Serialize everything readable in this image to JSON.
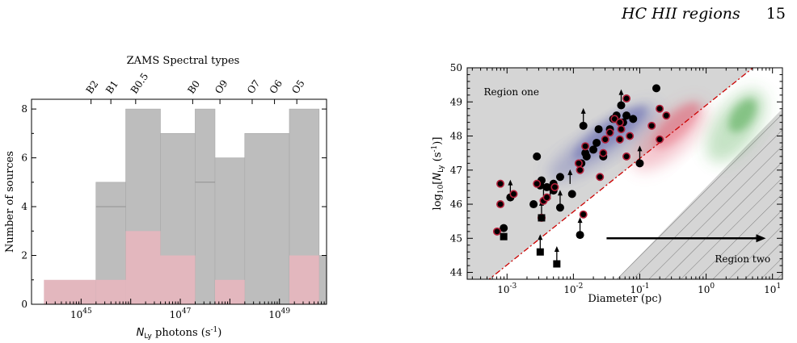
{
  "header": {
    "running_title": "HC HII regions",
    "page_number": "15"
  },
  "chart_data": [
    {
      "type": "bar",
      "name": "histogram",
      "top_axis_title": "ZAMS Spectral types",
      "top_ticks": [
        "B2",
        "B1",
        "B0.5",
        "B0",
        "O9",
        "O7",
        "O6",
        "O5"
      ],
      "top_tick_log_positions": [
        45.2,
        45.6,
        46.1,
        47.25,
        47.8,
        48.45,
        48.9,
        49.35
      ],
      "ylabel": "Number of sources",
      "xlabel": "N_Ly photons (s^-1)",
      "xlim_log": [
        44.0,
        49.95
      ],
      "ylim": [
        0,
        8.4
      ],
      "x_tick_labels": [
        "10^45",
        "10^47",
        "10^49"
      ],
      "x_tick_log_values": [
        45,
        47,
        49
      ],
      "y_tick_labels": [
        "0",
        "2",
        "4",
        "6",
        "8"
      ],
      "y_tick_values": [
        0,
        2,
        4,
        6,
        8
      ],
      "series": [
        {
          "bins": [
            [
              44.25,
              45.3,
              0
            ],
            [
              45.3,
              45.9,
              5
            ],
            [
              45.9,
              46.6,
              8
            ],
            [
              46.6,
              47.3,
              7
            ],
            [
              47.3,
              47.7,
              8
            ],
            [
              47.7,
              48.3,
              6
            ],
            [
              48.3,
              49.2,
              7
            ],
            [
              49.2,
              49.8,
              8
            ],
            [
              49.8,
              50.0,
              2
            ]
          ],
          "color": "#bdbdbd"
        },
        {
          "bins": [
            [
              44.25,
              45.3,
              1
            ],
            [
              45.3,
              45.9,
              1
            ],
            [
              45.9,
              46.6,
              3
            ],
            [
              46.6,
              47.3,
              2
            ],
            [
              47.3,
              47.7,
              0
            ],
            [
              47.7,
              48.3,
              1
            ],
            [
              48.3,
              49.2,
              0
            ],
            [
              49.2,
              49.8,
              2
            ],
            [
              49.8,
              50.0,
              0
            ]
          ],
          "color": "#e3b7be"
        }
      ]
    },
    {
      "type": "scatter",
      "name": "size-luminosity",
      "xlabel": "Diameter (pc)",
      "ylabel": "log10[N_Ly (s^-1)]",
      "xlim_log": [
        -3.6,
        1.15
      ],
      "ylim": [
        43.8,
        50.0
      ],
      "x_tick_labels": [
        "10^-3",
        "10^-2",
        "10^-1",
        "10^0",
        "10^1"
      ],
      "x_tick_log_values": [
        -3,
        -2,
        -1,
        0,
        1
      ],
      "y_tick_labels": [
        "44",
        "45",
        "46",
        "47",
        "48",
        "49",
        "50"
      ],
      "y_tick_values": [
        44,
        45,
        46,
        47,
        48,
        49,
        50
      ],
      "annotations": [
        "Region one",
        "Region two"
      ],
      "points_black": [
        [
          -2.6,
          46.0
        ],
        [
          -2.55,
          47.4
        ],
        [
          -2.48,
          46.7
        ],
        [
          -2.4,
          46.5
        ],
        [
          -2.3,
          46.6
        ],
        [
          -2.2,
          46.8
        ],
        [
          -2.2,
          45.9
        ],
        [
          -2.02,
          46.3
        ],
        [
          -1.88,
          47.2
        ],
        [
          -1.85,
          48.3
        ],
        [
          -1.82,
          47.5
        ],
        [
          -1.8,
          47.4
        ],
        [
          -1.7,
          47.6
        ],
        [
          -1.65,
          47.8
        ],
        [
          -1.62,
          48.2
        ],
        [
          -1.55,
          47.4
        ],
        [
          -1.45,
          48.2
        ],
        [
          -1.4,
          48.5
        ],
        [
          -1.35,
          48.6
        ],
        [
          -1.28,
          48.9
        ],
        [
          -1.25,
          48.4
        ],
        [
          -1.2,
          48.6
        ],
        [
          -1.1,
          48.5
        ],
        [
          -1.0,
          47.2
        ],
        [
          -0.75,
          49.4
        ],
        [
          -2.95,
          46.2
        ],
        [
          -3.05,
          45.3
        ],
        [
          -1.9,
          45.1
        ],
        [
          -2.3,
          46.4
        ],
        [
          -2.5,
          46.55
        ]
      ],
      "points_red": [
        [
          -3.15,
          45.2
        ],
        [
          -3.1,
          46.6
        ],
        [
          -3.1,
          46.0
        ],
        [
          -2.9,
          46.3
        ],
        [
          -2.55,
          46.6
        ],
        [
          -2.48,
          45.6
        ],
        [
          -2.45,
          46.1
        ],
        [
          -2.4,
          46.2
        ],
        [
          -2.28,
          46.5
        ],
        [
          -1.92,
          47.2
        ],
        [
          -1.9,
          47.0
        ],
        [
          -1.82,
          47.7
        ],
        [
          -1.6,
          46.8
        ],
        [
          -1.55,
          47.5
        ],
        [
          -1.52,
          47.9
        ],
        [
          -1.45,
          48.1
        ],
        [
          -1.38,
          48.5
        ],
        [
          -1.3,
          47.9
        ],
        [
          -1.2,
          47.4
        ],
        [
          -1.15,
          48.0
        ],
        [
          -1.2,
          49.1
        ],
        [
          -0.82,
          48.3
        ],
        [
          -0.7,
          47.9
        ],
        [
          -0.7,
          48.8
        ],
        [
          -0.6,
          48.6
        ],
        [
          -1.85,
          45.7
        ],
        [
          -1.3,
          48.4
        ],
        [
          -1.28,
          48.2
        ]
      ],
      "squares": [
        [
          -3.05,
          45.05
        ],
        [
          -2.5,
          44.6
        ],
        [
          -2.25,
          44.25
        ],
        [
          -2.48,
          45.6
        ]
      ],
      "upward_arrow_points": [
        [
          -2.95,
          46.2
        ],
        [
          -2.5,
          44.6
        ],
        [
          -2.25,
          44.25
        ],
        [
          -2.45,
          46.1
        ],
        [
          -2.2,
          45.9
        ],
        [
          -1.9,
          45.1
        ],
        [
          -1.85,
          48.3
        ],
        [
          -1.0,
          47.2
        ],
        [
          -2.48,
          45.6
        ],
        [
          -2.05,
          46.5
        ],
        [
          -2.35,
          46.05
        ],
        [
          -1.28,
          48.85
        ]
      ],
      "arrow": {
        "from": [
          -1.5,
          45.0
        ],
        "to": [
          0.9,
          45.0
        ]
      },
      "colors": {
        "black_marker": "#000000",
        "red_edge": "#b3203a",
        "dashdot_line": "#cc0000",
        "blue_kde": "#5a5fb0",
        "red_kde": "#e26478",
        "green_kde": "#4ea84e",
        "shade": "#d5d5d5"
      }
    }
  ]
}
